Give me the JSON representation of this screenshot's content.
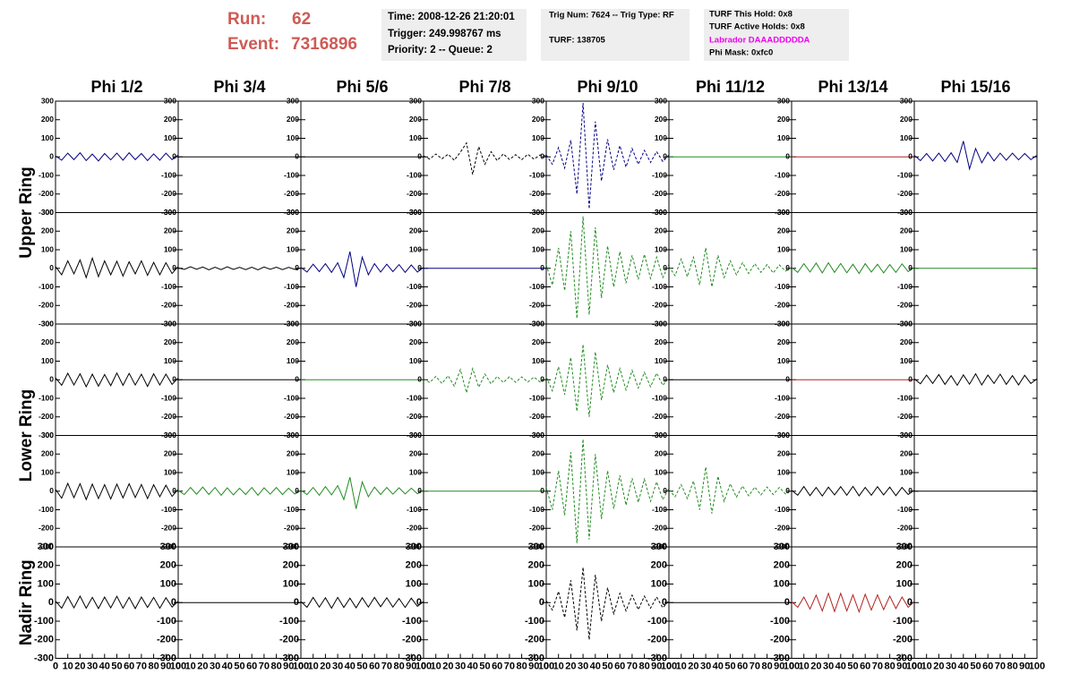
{
  "header": {
    "run_label": "Run:",
    "run": 62,
    "event_label": "Event:",
    "event": 7316896,
    "box1": [
      "Time: 2008-12-26 21:20:01",
      "Trigger: 249.998767 ms",
      "Priority: 2 -- Queue: 2"
    ],
    "box2": [
      "Trig Num: 7624 -- Trig Type: RF",
      "TURF: 138705"
    ],
    "box3": [
      "TURF This Hold: 0x8",
      "TURF Active Holds: 0x8",
      "Labrador DAAADDDDDA",
      "Phi Mask: 0xfc0"
    ]
  },
  "chart_data": {
    "type": "line",
    "columns": [
      "Phi 1/2",
      "Phi 3/4",
      "Phi 5/6",
      "Phi 7/8",
      "Phi 9/10",
      "Phi 11/12",
      "Phi 13/14",
      "Phi 15/16"
    ],
    "rings": [
      "Upper Ring",
      "Lower Ring",
      "Nadir Ring"
    ],
    "xlim": [
      0,
      100
    ],
    "ylim": [
      -300,
      300
    ],
    "xticks": [
      0,
      10,
      20,
      30,
      40,
      50,
      60,
      70,
      80,
      90,
      100
    ],
    "yticks": [
      300,
      200,
      100,
      0,
      -100,
      -200,
      -300
    ],
    "x": [
      0,
      5,
      10,
      15,
      20,
      25,
      30,
      35,
      40,
      45,
      50,
      55,
      60,
      65,
      70,
      75,
      80,
      85,
      90,
      95,
      100
    ],
    "panels": [
      [
        {
          "color": "#000080",
          "values": [
            5,
            -18,
            20,
            -15,
            22,
            -20,
            15,
            -22,
            18,
            -16,
            20,
            -18,
            22,
            -15,
            18,
            -20,
            16,
            -18,
            20,
            -15,
            10
          ]
        },
        {
          "color": "#000000",
          "values": [
            0,
            0,
            0,
            0,
            0,
            0,
            0,
            0,
            0,
            0,
            0,
            0,
            0,
            0,
            0,
            0,
            0,
            0,
            0,
            0,
            0
          ]
        },
        {
          "color": "#000000",
          "values": [
            0,
            0,
            0,
            0,
            0,
            0,
            0,
            0,
            0,
            0,
            0,
            0,
            0,
            0,
            0,
            0,
            0,
            0,
            0,
            0,
            0
          ]
        },
        {
          "color": "#000000",
          "dashed": true,
          "values": [
            5,
            -12,
            15,
            -10,
            14,
            -18,
            25,
            75,
            -95,
            55,
            -40,
            28,
            -20,
            16,
            -14,
            12,
            -15,
            14,
            -12,
            10,
            5
          ]
        },
        {
          "color": "#000080",
          "dashed": true,
          "values": [
            10,
            -40,
            50,
            -60,
            90,
            -200,
            290,
            -280,
            190,
            -130,
            95,
            -70,
            60,
            -55,
            45,
            -40,
            35,
            -30,
            28,
            -25,
            10
          ]
        },
        {
          "color": "#228b22",
          "values": [
            0,
            0,
            0,
            0,
            0,
            0,
            0,
            0,
            0,
            0,
            0,
            0,
            0,
            0,
            0,
            0,
            0,
            0,
            0,
            0,
            0
          ]
        },
        {
          "color": "#b22222",
          "values": [
            0,
            0,
            0,
            0,
            0,
            0,
            0,
            0,
            0,
            0,
            0,
            0,
            0,
            0,
            0,
            0,
            0,
            0,
            0,
            0,
            0
          ]
        },
        {
          "color": "#000080",
          "values": [
            8,
            -20,
            18,
            -22,
            20,
            -25,
            22,
            -30,
            85,
            -65,
            45,
            -32,
            25,
            -22,
            20,
            -18,
            20,
            -16,
            18,
            -15,
            8
          ]
        }
      ],
      [
        {
          "color": "#000000",
          "values": [
            10,
            -35,
            40,
            -30,
            45,
            -50,
            55,
            -45,
            40,
            -35,
            38,
            -42,
            35,
            -30,
            40,
            -38,
            32,
            -35,
            30,
            -28,
            10
          ]
        },
        {
          "color": "#000000",
          "values": [
            2,
            -6,
            8,
            -5,
            7,
            -8,
            6,
            -7,
            8,
            -6,
            5,
            -7,
            6,
            -8,
            7,
            -5,
            6,
            -7,
            5,
            -6,
            2
          ]
        },
        {
          "color": "#000080",
          "values": [
            5,
            -20,
            22,
            -18,
            25,
            -22,
            30,
            -50,
            90,
            -100,
            60,
            -35,
            25,
            -20,
            22,
            -18,
            20,
            -22,
            18,
            -20,
            5
          ]
        },
        {
          "color": "#000080",
          "values": [
            0,
            0,
            0,
            0,
            0,
            0,
            0,
            0,
            0,
            0,
            0,
            0,
            0,
            0,
            0,
            0,
            0,
            0,
            0,
            0,
            0
          ]
        },
        {
          "color": "#228b22",
          "dashed": true,
          "values": [
            20,
            -90,
            110,
            -120,
            200,
            -270,
            280,
            -250,
            220,
            -160,
            120,
            -100,
            90,
            -80,
            70,
            -60,
            75,
            -55,
            60,
            -50,
            20
          ]
        },
        {
          "color": "#228b22",
          "dashed": true,
          "values": [
            10,
            -40,
            50,
            -45,
            60,
            -90,
            110,
            -100,
            70,
            -50,
            40,
            -35,
            30,
            -28,
            25,
            -22,
            20,
            -25,
            18,
            -15,
            5
          ]
        },
        {
          "color": "#228b22",
          "values": [
            5,
            -22,
            25,
            -20,
            28,
            -25,
            30,
            -22,
            26,
            -24,
            22,
            -28,
            25,
            -20,
            22,
            -25,
            20,
            -22,
            24,
            -18,
            5
          ]
        },
        {
          "color": "#228b22",
          "values": [
            0,
            0,
            0,
            0,
            0,
            0,
            0,
            0,
            0,
            0,
            0,
            0,
            0,
            0,
            0,
            0,
            0,
            0,
            0,
            0,
            0
          ]
        }
      ],
      [
        {
          "color": "#000000",
          "values": [
            10,
            -30,
            35,
            -28,
            32,
            -38,
            30,
            -35,
            28,
            -32,
            36,
            -30,
            34,
            -28,
            30,
            -36,
            32,
            -28,
            30,
            -25,
            10
          ]
        },
        {
          "color": "#000000",
          "values": [
            0,
            0,
            0,
            0,
            0,
            0,
            0,
            0,
            0,
            0,
            0,
            0,
            0,
            0,
            0,
            0,
            0,
            0,
            0,
            0,
            0
          ]
        },
        {
          "color": "#228b22",
          "values": [
            0,
            0,
            0,
            0,
            0,
            0,
            0,
            0,
            0,
            0,
            0,
            0,
            0,
            0,
            0,
            0,
            0,
            0,
            0,
            0,
            0
          ]
        },
        {
          "color": "#228b22",
          "dashed": true,
          "values": [
            5,
            -15,
            18,
            -20,
            22,
            -35,
            55,
            -70,
            60,
            -40,
            30,
            -22,
            18,
            -15,
            16,
            -14,
            15,
            -12,
            14,
            -12,
            5
          ]
        },
        {
          "color": "#228b22",
          "dashed": true,
          "values": [
            15,
            -60,
            70,
            -80,
            120,
            -170,
            190,
            -200,
            150,
            -110,
            80,
            -70,
            60,
            -55,
            50,
            -45,
            40,
            -38,
            35,
            -30,
            10
          ]
        },
        {
          "color": "#000000",
          "values": [
            0,
            0,
            0,
            0,
            0,
            0,
            0,
            0,
            0,
            0,
            0,
            0,
            0,
            0,
            0,
            0,
            0,
            0,
            0,
            0,
            0
          ]
        },
        {
          "color": "#b22222",
          "values": [
            0,
            0,
            0,
            0,
            0,
            0,
            0,
            0,
            0,
            0,
            0,
            0,
            0,
            0,
            0,
            0,
            0,
            0,
            0,
            0,
            0
          ]
        },
        {
          "color": "#000000",
          "values": [
            5,
            -22,
            25,
            -20,
            28,
            -25,
            22,
            -30,
            26,
            -24,
            32,
            -28,
            25,
            -20,
            30,
            -25,
            22,
            -28,
            24,
            -20,
            5
          ]
        }
      ],
      [
        {
          "color": "#000000",
          "values": [
            10,
            -38,
            42,
            -35,
            40,
            -45,
            38,
            -40,
            35,
            -42,
            38,
            -36,
            40,
            -34,
            36,
            -40,
            35,
            -30,
            32,
            -28,
            10
          ]
        },
        {
          "color": "#228b22",
          "values": [
            4,
            -18,
            20,
            -16,
            22,
            -18,
            20,
            -22,
            18,
            -20,
            16,
            -18,
            20,
            -22,
            18,
            -16,
            20,
            -18,
            16,
            -15,
            4
          ]
        },
        {
          "color": "#228b22",
          "values": [
            5,
            -18,
            20,
            -22,
            25,
            -20,
            30,
            -45,
            75,
            -95,
            50,
            -30,
            22,
            -18,
            20,
            -16,
            18,
            -15,
            16,
            -14,
            5
          ]
        },
        {
          "color": "#228b22",
          "values": [
            0,
            0,
            0,
            0,
            0,
            0,
            0,
            0,
            0,
            0,
            0,
            0,
            0,
            0,
            0,
            0,
            0,
            0,
            0,
            0,
            0
          ]
        },
        {
          "color": "#228b22",
          "dashed": true,
          "values": [
            20,
            -100,
            110,
            -130,
            210,
            -280,
            280,
            -260,
            200,
            -150,
            110,
            -95,
            85,
            -75,
            70,
            -60,
            65,
            -55,
            50,
            -45,
            15
          ]
        },
        {
          "color": "#228b22",
          "dashed": true,
          "values": [
            8,
            -30,
            35,
            -40,
            55,
            -100,
            130,
            -120,
            80,
            -55,
            40,
            -32,
            28,
            -25,
            22,
            -20,
            22,
            -18,
            20,
            -15,
            5
          ]
        },
        {
          "color": "#000000",
          "values": [
            5,
            -22,
            25,
            -24,
            20,
            -26,
            22,
            -20,
            24,
            -22,
            26,
            -25,
            20,
            -22,
            24,
            -20,
            22,
            -24,
            20,
            -18,
            5
          ]
        },
        {
          "color": "#000000",
          "values": [
            0,
            0,
            0,
            0,
            0,
            0,
            0,
            0,
            0,
            0,
            0,
            0,
            0,
            0,
            0,
            0,
            0,
            0,
            0,
            0,
            0
          ]
        }
      ],
      [
        {
          "color": "#000000",
          "values": [
            8,
            -30,
            32,
            -28,
            35,
            -30,
            28,
            -32,
            30,
            -28,
            34,
            -30,
            28,
            -32,
            30,
            -26,
            28,
            -30,
            26,
            -24,
            8
          ]
        },
        {
          "color": "#000000",
          "values": [
            0,
            0,
            0,
            0,
            0,
            0,
            0,
            0,
            0,
            0,
            0,
            0,
            0,
            0,
            0,
            0,
            0,
            0,
            0,
            0,
            0
          ]
        },
        {
          "color": "#000000",
          "values": [
            6,
            -25,
            28,
            -24,
            26,
            -30,
            28,
            -26,
            24,
            -28,
            26,
            -24,
            28,
            -22,
            26,
            -24,
            22,
            -26,
            24,
            -20,
            6
          ]
        },
        null,
        {
          "color": "#000000",
          "dashed": true,
          "values": [
            10,
            -40,
            60,
            -80,
            120,
            -150,
            190,
            -200,
            150,
            -100,
            80,
            -60,
            50,
            -45,
            40,
            -38,
            35,
            -30,
            30,
            -28,
            10
          ]
        },
        {
          "color": "#000000",
          "values": [
            0,
            0,
            0,
            0,
            0,
            0,
            0,
            0,
            0,
            0,
            0,
            0,
            0,
            0,
            0,
            0,
            0,
            0,
            0,
            0,
            0
          ]
        },
        {
          "color": "#b22222",
          "values": [
            5,
            -25,
            30,
            -35,
            40,
            -45,
            50,
            -48,
            50,
            -45,
            42,
            -50,
            45,
            -40,
            42,
            -38,
            35,
            -32,
            30,
            -25,
            5
          ]
        },
        null
      ]
    ]
  }
}
